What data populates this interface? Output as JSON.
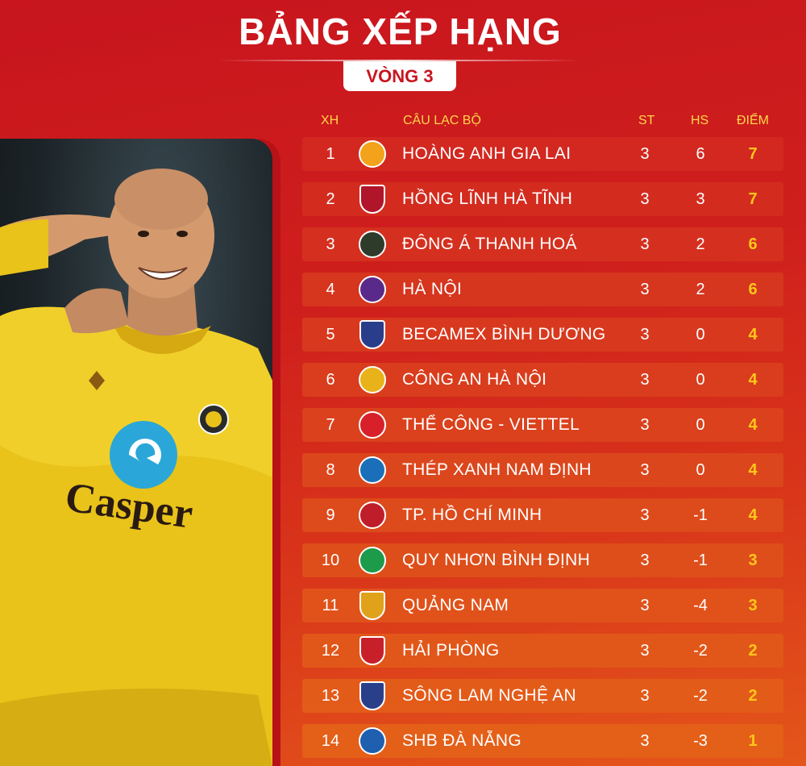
{
  "title": "BẢNG XẾP HẠNG",
  "round": "VÒNG 3",
  "headers": {
    "rank": "XH",
    "club": "CÂU LẠC BỘ",
    "played": "ST",
    "diff": "HS",
    "points": "ĐIỂM"
  },
  "photo_text": {
    "sponsor": "Casper"
  },
  "teams": [
    {
      "rank": "1",
      "club": "HOÀNG ANH GIA LAI",
      "played": "3",
      "diff": "6",
      "points": "7",
      "logo": "hagl-logo-icon",
      "color": "#f2a31b"
    },
    {
      "rank": "2",
      "club": "HỒNG LĨNH HÀ TĨNH",
      "played": "3",
      "diff": "3",
      "points": "7",
      "logo": "hong-linh-ha-tinh-logo-icon",
      "color": "#b0152a"
    },
    {
      "rank": "3",
      "club": "ĐÔNG Á THANH HOÁ",
      "played": "3",
      "diff": "2",
      "points": "6",
      "logo": "thanh-hoa-logo-icon",
      "color": "#2e3a2a"
    },
    {
      "rank": "4",
      "club": "HÀ NỘI",
      "played": "3",
      "diff": "2",
      "points": "6",
      "logo": "ha-noi-logo-icon",
      "color": "#5a2a8a"
    },
    {
      "rank": "5",
      "club": "BECAMEX BÌNH DƯƠNG",
      "played": "3",
      "diff": "0",
      "points": "4",
      "logo": "binh-duong-logo-icon",
      "color": "#2a3d8a"
    },
    {
      "rank": "6",
      "club": "CÔNG AN HÀ NỘI",
      "played": "3",
      "diff": "0",
      "points": "4",
      "logo": "cong-an-ha-noi-logo-icon",
      "color": "#e8b21a"
    },
    {
      "rank": "7",
      "club": "THỂ CÔNG - VIETTEL",
      "played": "3",
      "diff": "0",
      "points": "4",
      "logo": "viettel-logo-icon",
      "color": "#d8202a"
    },
    {
      "rank": "8",
      "club": "THÉP XANH NAM ĐỊNH",
      "played": "3",
      "diff": "0",
      "points": "4",
      "logo": "nam-dinh-logo-icon",
      "color": "#1b6fb8"
    },
    {
      "rank": "9",
      "club": "TP. HỒ CHÍ MINH",
      "played": "3",
      "diff": "-1",
      "points": "4",
      "logo": "tp-hcm-logo-icon",
      "color": "#c01d2a"
    },
    {
      "rank": "10",
      "club": "QUY NHƠN BÌNH ĐỊNH",
      "played": "3",
      "diff": "-1",
      "points": "3",
      "logo": "binh-dinh-logo-icon",
      "color": "#1d9a4a"
    },
    {
      "rank": "11",
      "club": "QUẢNG NAM",
      "played": "3",
      "diff": "-4",
      "points": "3",
      "logo": "quang-nam-logo-icon",
      "color": "#e0a21a"
    },
    {
      "rank": "12",
      "club": "HẢI PHÒNG",
      "played": "3",
      "diff": "-2",
      "points": "2",
      "logo": "hai-phong-logo-icon",
      "color": "#c8202a"
    },
    {
      "rank": "13",
      "club": "SÔNG LAM NGHỆ AN",
      "played": "3",
      "diff": "-2",
      "points": "2",
      "logo": "slna-logo-icon",
      "color": "#2a3f8a"
    },
    {
      "rank": "14",
      "club": "SHB ĐÀ NẴNG",
      "played": "3",
      "diff": "-3",
      "points": "1",
      "logo": "da-nang-logo-icon",
      "color": "#1f5fb0"
    }
  ],
  "colors": {
    "background": "#c8151e",
    "points": "#ffc61a",
    "header": "#ffd54a"
  }
}
